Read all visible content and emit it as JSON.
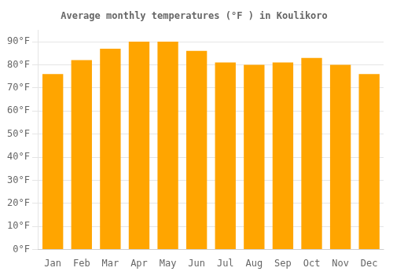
{
  "chart_data": {
    "type": "bar",
    "title": "Average monthly temperatures (°F ) in Koulikoro",
    "categories": [
      "Jan",
      "Feb",
      "Mar",
      "Apr",
      "May",
      "Jun",
      "Jul",
      "Aug",
      "Sep",
      "Oct",
      "Nov",
      "Dec"
    ],
    "values": [
      76,
      82,
      87,
      90,
      90,
      86,
      81,
      80,
      81,
      83,
      80,
      76
    ],
    "color": "#FFA500",
    "ylim": [
      0,
      95
    ],
    "yticks": [
      {
        "value": 0,
        "label": "0°F"
      },
      {
        "value": 10,
        "label": "10°F"
      },
      {
        "value": 20,
        "label": "20°F"
      },
      {
        "value": 30,
        "label": "30°F"
      },
      {
        "value": 40,
        "label": "40°F"
      },
      {
        "value": 50,
        "label": "50°F"
      },
      {
        "value": 60,
        "label": "60°F"
      },
      {
        "value": 70,
        "label": "70°F"
      },
      {
        "value": 80,
        "label": "80°F"
      },
      {
        "value": 90,
        "label": "90°F"
      }
    ],
    "grid": true
  }
}
